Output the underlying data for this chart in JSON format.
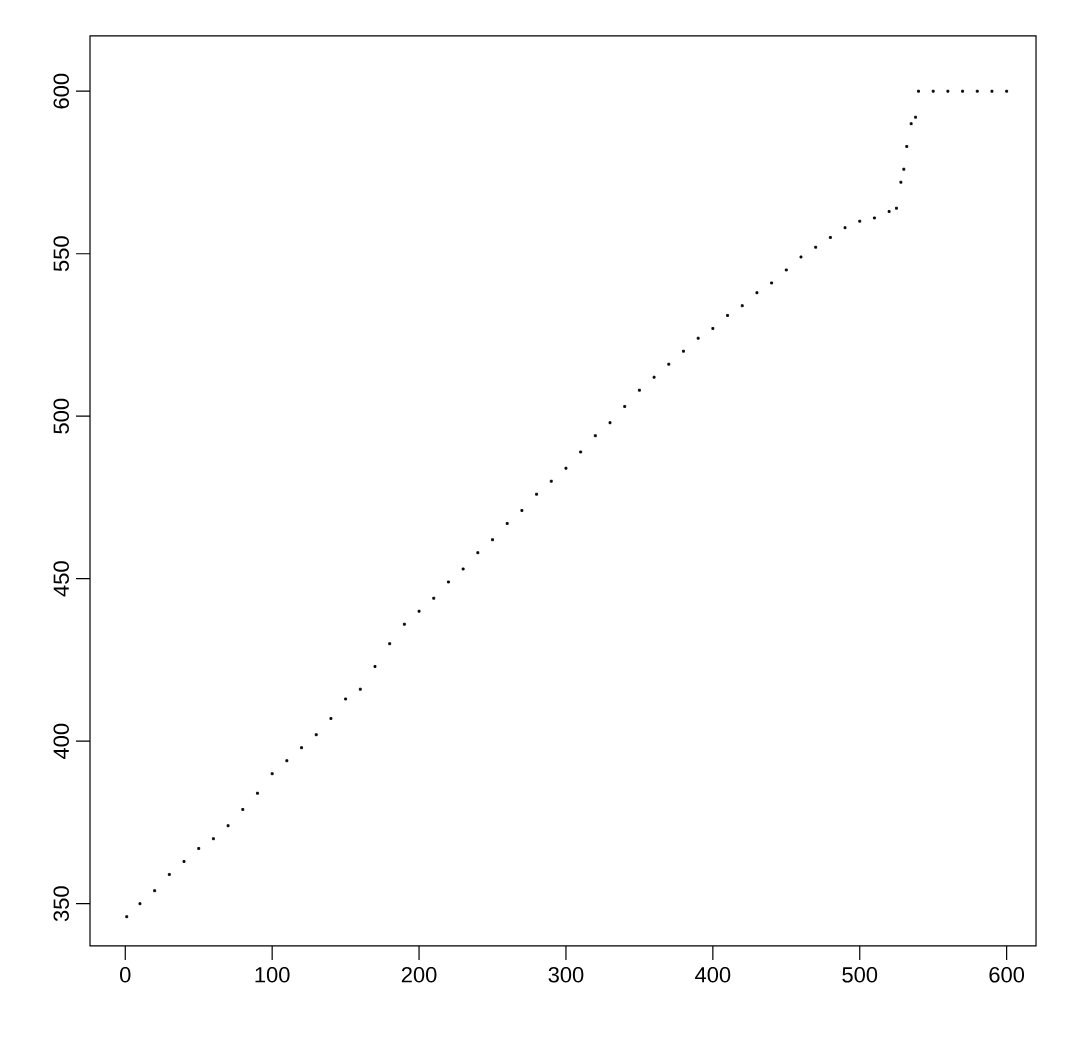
{
  "chart_data": {
    "type": "scatter",
    "marker": "square",
    "x": [
      1,
      10,
      20,
      30,
      40,
      50,
      60,
      70,
      80,
      90,
      100,
      110,
      120,
      130,
      140,
      150,
      160,
      170,
      180,
      190,
      200,
      210,
      220,
      230,
      240,
      250,
      260,
      270,
      280,
      290,
      300,
      310,
      320,
      330,
      340,
      350,
      360,
      370,
      380,
      390,
      400,
      410,
      420,
      430,
      440,
      450,
      460,
      470,
      480,
      490,
      500,
      510,
      520,
      525,
      528,
      530,
      532,
      535,
      538,
      540,
      550,
      560,
      570,
      580,
      590,
      600
    ],
    "values": [
      346,
      350,
      354,
      359,
      363,
      367,
      370,
      374,
      379,
      384,
      390,
      394,
      398,
      402,
      407,
      413,
      416,
      423,
      430,
      436,
      440,
      444,
      449,
      453,
      458,
      462,
      467,
      471,
      476,
      480,
      484,
      489,
      494,
      498,
      503,
      508,
      512,
      516,
      520,
      524,
      527,
      531,
      534,
      538,
      541,
      545,
      549,
      552,
      555,
      558,
      560,
      561,
      563,
      564,
      572,
      576,
      583,
      590,
      592,
      600,
      600,
      600,
      600,
      600,
      600,
      600
    ],
    "color": "#000000",
    "xlim": [
      -24,
      620
    ],
    "ylim": [
      337,
      617
    ],
    "xticks": [
      0,
      100,
      200,
      300,
      400,
      500,
      600
    ],
    "yticks": [
      350,
      400,
      450,
      500,
      550,
      600
    ]
  }
}
